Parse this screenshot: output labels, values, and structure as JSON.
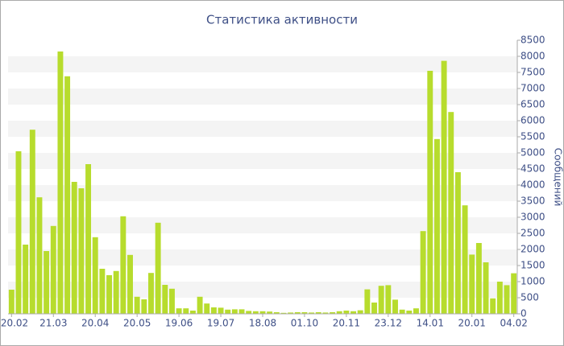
{
  "chart_data": {
    "type": "bar",
    "title": "Статистика активности",
    "y_label": "Сообщений",
    "categories": [
      "20.02",
      null,
      null,
      null,
      null,
      null,
      "21.03",
      null,
      null,
      null,
      null,
      null,
      "20.04",
      null,
      null,
      null,
      null,
      null,
      "20.05",
      null,
      null,
      null,
      null,
      null,
      "19.06",
      null,
      null,
      null,
      null,
      null,
      "19.07",
      null,
      null,
      null,
      null,
      null,
      "18.08",
      null,
      null,
      null,
      null,
      null,
      "01.10",
      null,
      null,
      null,
      null,
      null,
      "20.11",
      null,
      null,
      null,
      null,
      null,
      "23.12",
      null,
      null,
      null,
      null,
      null,
      "14.01",
      null,
      null,
      null,
      null,
      null,
      "20.01",
      null,
      null,
      null,
      null,
      null,
      "04.02"
    ],
    "values": [
      750,
      5050,
      2150,
      5720,
      3620,
      1950,
      2730,
      8150,
      7380,
      4100,
      3900,
      4650,
      2380,
      1400,
      1200,
      1330,
      3030,
      1830,
      530,
      450,
      1270,
      2830,
      900,
      780,
      170,
      170,
      100,
      530,
      320,
      200,
      190,
      130,
      140,
      140,
      90,
      80,
      80,
      70,
      50,
      30,
      40,
      50,
      50,
      40,
      50,
      40,
      50,
      80,
      100,
      80,
      110,
      760,
      350,
      870,
      890,
      440,
      130,
      100,
      170,
      2570,
      7550,
      5430,
      7860,
      6270,
      4400,
      3370,
      1840,
      2200,
      1600,
      480,
      1000,
      890,
      1260
    ],
    "color": "#b7dc2d",
    "ylim": [
      0,
      8500
    ],
    "yticks": [
      0,
      500,
      1000,
      1500,
      2000,
      2500,
      3000,
      3500,
      4000,
      4500,
      5000,
      5500,
      6000,
      6500,
      7000,
      7500,
      8000,
      8500
    ],
    "grid": true
  }
}
